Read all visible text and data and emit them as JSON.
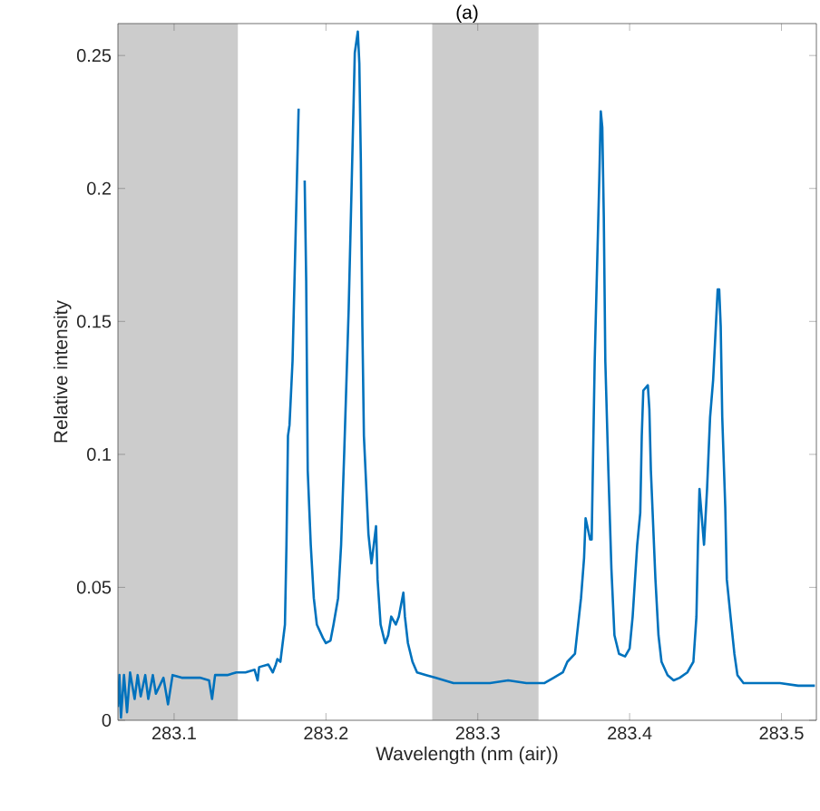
{
  "chart_data": {
    "type": "line",
    "title": "(a)",
    "xlabel": "Wavelength (nm (air))",
    "ylabel": "Relative intensity",
    "xlim": [
      283.063,
      283.523
    ],
    "ylim": [
      0,
      0.262
    ],
    "xticks": [
      283.1,
      283.2,
      283.3,
      283.4,
      283.5
    ],
    "yticks": [
      0,
      0.05,
      0.1,
      0.15,
      0.2,
      0.25
    ],
    "bands": [
      {
        "axis": "x",
        "from": 283.063,
        "to": 283.142,
        "color": "#cccccc"
      },
      {
        "axis": "x",
        "from": 283.27,
        "to": 283.34,
        "color": "#cccccc"
      }
    ],
    "series": [
      {
        "color": "#0072bd",
        "x": [
          283.063,
          283.064,
          283.065,
          283.067,
          283.069,
          283.071,
          283.074,
          283.076,
          283.078,
          283.081,
          283.083,
          283.086,
          283.088,
          283.093,
          283.096,
          283.099,
          283.105,
          283.117,
          283.123,
          283.125,
          283.127,
          283.135,
          283.141,
          283.147,
          283.153,
          283.155,
          283.156,
          283.162,
          283.165,
          283.167,
          283.168,
          283.17,
          283.173,
          283.174,
          283.175,
          283.176,
          283.178,
          283.18,
          283.182,
          283.184,
          283.185,
          283.186,
          283.187,
          283.188,
          283.19,
          283.192,
          283.194,
          283.198,
          283.2,
          283.203,
          283.205,
          283.208,
          283.21,
          283.212,
          283.215,
          283.217,
          283.219,
          283.221,
          283.222,
          283.223,
          283.224,
          283.225,
          283.228,
          283.23,
          283.233,
          283.234,
          283.236,
          283.239,
          283.241,
          283.243,
          283.246,
          283.248,
          283.251,
          283.252,
          283.254,
          283.257,
          283.26,
          283.266,
          283.272,
          283.284,
          283.296,
          283.308,
          283.32,
          283.332,
          283.344,
          283.35,
          283.356,
          283.359,
          283.364,
          283.368,
          283.37,
          283.371,
          283.374,
          283.375,
          283.377,
          283.38,
          283.381,
          283.382,
          283.383,
          283.384,
          283.386,
          283.388,
          283.39,
          283.393,
          283.397,
          283.4,
          283.402,
          283.405,
          283.407,
          283.408,
          283.409,
          283.412,
          283.413,
          283.414,
          283.417,
          283.419,
          283.421,
          283.425,
          283.429,
          283.433,
          283.438,
          283.442,
          283.444,
          283.445,
          283.446,
          283.449,
          283.451,
          283.453,
          283.455,
          283.458,
          283.459,
          283.46,
          283.461,
          283.463,
          283.464,
          283.467,
          283.469,
          283.471,
          283.475,
          283.481,
          283.487,
          283.499,
          283.511,
          283.522
        ],
        "values": [
          0.005,
          0.017,
          0.001,
          0.017,
          0.003,
          0.018,
          0.008,
          0.017,
          0.009,
          0.017,
          0.008,
          0.017,
          0.01,
          0.016,
          0.006,
          0.017,
          0.016,
          0.016,
          0.015,
          0.008,
          0.017,
          0.017,
          0.018,
          0.018,
          0.019,
          0.015,
          0.02,
          0.021,
          0.018,
          0.021,
          0.023,
          0.022,
          0.036,
          0.066,
          0.107,
          0.111,
          0.135,
          0.182,
          0.23,
          null,
          null,
          0.203,
          0.165,
          0.094,
          0.066,
          0.046,
          0.036,
          0.031,
          0.029,
          0.03,
          0.036,
          0.046,
          0.066,
          0.1,
          0.155,
          0.203,
          0.251,
          0.259,
          0.247,
          0.21,
          0.148,
          0.107,
          0.07,
          0.059,
          0.073,
          0.053,
          0.036,
          0.029,
          0.032,
          0.039,
          0.036,
          0.039,
          0.048,
          0.039,
          0.029,
          0.022,
          0.018,
          0.017,
          0.016,
          0.014,
          0.014,
          0.014,
          0.015,
          0.014,
          0.014,
          0.016,
          0.018,
          0.022,
          0.025,
          0.046,
          0.061,
          0.076,
          0.068,
          0.068,
          0.135,
          0.203,
          0.229,
          0.223,
          0.189,
          0.135,
          0.094,
          0.057,
          0.032,
          0.025,
          0.024,
          0.027,
          0.039,
          0.066,
          0.078,
          0.107,
          0.124,
          0.126,
          0.117,
          0.094,
          0.053,
          0.032,
          0.022,
          0.017,
          0.015,
          0.016,
          0.018,
          0.022,
          0.039,
          0.066,
          0.087,
          0.066,
          0.087,
          0.114,
          0.128,
          0.162,
          0.162,
          0.148,
          0.114,
          0.08,
          0.053,
          0.036,
          0.025,
          0.017,
          0.014,
          0.014,
          0.014,
          0.014,
          0.013,
          0.013
        ]
      }
    ]
  }
}
